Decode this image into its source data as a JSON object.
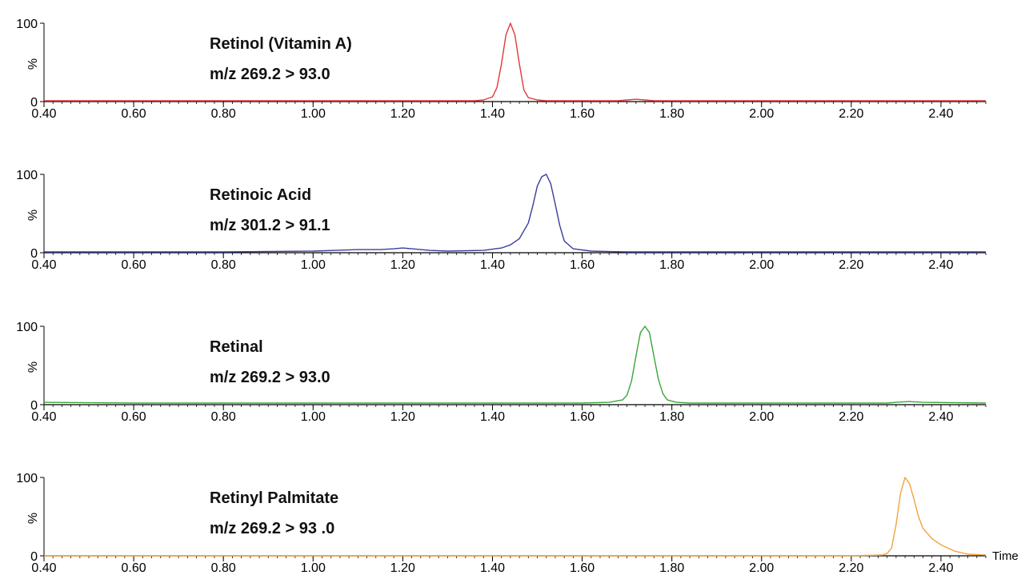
{
  "chart_data": [
    {
      "type": "line",
      "annotation_lines": [
        "Retinol (Vitamin A)",
        "m/z 269.2 > 93.0"
      ],
      "color": "#e0383c",
      "xlim": [
        0.4,
        2.5
      ],
      "ylim": [
        0,
        100
      ],
      "ylabel": "%",
      "ytick_labels": [
        "100",
        "0"
      ],
      "xtick_labels": [
        "0.40",
        "0.60",
        "0.80",
        "1.00",
        "1.20",
        "1.40",
        "1.60",
        "1.80",
        "2.00",
        "2.20",
        "2.40"
      ],
      "series": [
        {
          "x": [
            0.4,
            1.0,
            1.36,
            1.38,
            1.4,
            1.41,
            1.42,
            1.43,
            1.44,
            1.45,
            1.46,
            1.47,
            1.48,
            1.5,
            1.52,
            1.68,
            1.7,
            1.72,
            1.74,
            1.76,
            2.5
          ],
          "y": [
            1,
            1,
            1,
            2,
            6,
            18,
            48,
            85,
            100,
            85,
            48,
            15,
            5,
            2,
            1,
            1,
            2,
            3,
            2,
            1,
            1
          ]
        }
      ]
    },
    {
      "type": "line",
      "annotation_lines": [
        "Retinoic Acid",
        "m/z 301.2 > 91.1"
      ],
      "color": "#3a3d9e",
      "xlim": [
        0.4,
        2.5
      ],
      "ylim": [
        0,
        100
      ],
      "ylabel": "%",
      "ytick_labels": [
        "100",
        "0"
      ],
      "xtick_labels": [
        "0.40",
        "0.60",
        "0.80",
        "1.00",
        "1.20",
        "1.40",
        "1.60",
        "1.80",
        "2.00",
        "2.20",
        "2.40"
      ],
      "series": [
        {
          "x": [
            0.4,
            0.8,
            1.0,
            1.05,
            1.1,
            1.15,
            1.18,
            1.2,
            1.22,
            1.26,
            1.3,
            1.38,
            1.42,
            1.44,
            1.46,
            1.48,
            1.49,
            1.5,
            1.51,
            1.52,
            1.53,
            1.54,
            1.55,
            1.56,
            1.58,
            1.62,
            1.7,
            1.9,
            2.5
          ],
          "y": [
            1,
            1,
            2,
            3,
            4,
            4,
            5,
            6,
            5,
            3,
            2,
            3,
            6,
            10,
            18,
            38,
            60,
            85,
            97,
            100,
            88,
            62,
            35,
            15,
            5,
            2,
            1,
            1,
            1
          ]
        }
      ]
    },
    {
      "type": "line",
      "annotation_lines": [
        "Retinal",
        "m/z 269.2 > 93.0"
      ],
      "color": "#3aa53a",
      "xlim": [
        0.4,
        2.5
      ],
      "ylim": [
        0,
        100
      ],
      "ylabel": "%",
      "ytick_labels": [
        "100",
        "0"
      ],
      "xtick_labels": [
        "0.40",
        "0.60",
        "0.80",
        "1.00",
        "1.20",
        "1.40",
        "1.60",
        "1.80",
        "2.00",
        "2.20",
        "2.40"
      ],
      "series": [
        {
          "x": [
            0.4,
            0.6,
            1.0,
            1.4,
            1.6,
            1.66,
            1.69,
            1.7,
            1.71,
            1.72,
            1.73,
            1.74,
            1.75,
            1.76,
            1.77,
            1.78,
            1.79,
            1.81,
            1.84,
            2.0,
            2.28,
            2.3,
            2.33,
            2.36,
            2.5
          ],
          "y": [
            3,
            2,
            2,
            2,
            2,
            3,
            6,
            12,
            30,
            62,
            92,
            100,
            92,
            62,
            32,
            14,
            6,
            3,
            2,
            2,
            2,
            3,
            4,
            3,
            2
          ]
        }
      ]
    },
    {
      "type": "line",
      "annotation_lines": [
        "Retinyl Palmitate",
        "m/z 269.2 > 93 .0"
      ],
      "color": "#f2a33c",
      "xlim": [
        0.4,
        2.5
      ],
      "ylim": [
        0,
        100
      ],
      "ylabel": "%",
      "ytick_labels": [
        "100",
        "0"
      ],
      "xtick_labels": [
        "0.40",
        "0.60",
        "0.80",
        "1.00",
        "1.20",
        "1.40",
        "1.60",
        "1.80",
        "2.00",
        "2.20",
        "2.40"
      ],
      "xlabel": "Time",
      "series": [
        {
          "x": [
            0.4,
            2.2,
            2.27,
            2.28,
            2.29,
            2.3,
            2.31,
            2.32,
            2.33,
            2.34,
            2.35,
            2.36,
            2.38,
            2.4,
            2.43,
            2.46,
            2.5
          ],
          "y": [
            0,
            0,
            1,
            3,
            10,
            40,
            80,
            100,
            92,
            72,
            50,
            35,
            22,
            14,
            6,
            2,
            1
          ]
        }
      ]
    }
  ]
}
